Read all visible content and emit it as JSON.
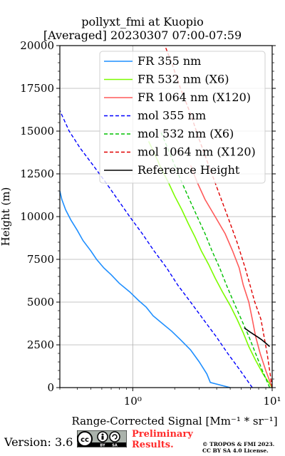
{
  "title_line1": "pollyxt_fmi at Kuopio",
  "title_line2": "[Averaged] 20230307 07:00-07:59",
  "version_label": "Version: 3.6",
  "prelim_line1": "Preliminary",
  "prelim_line2": "Results.",
  "copyright_line1": "© TROPOS & FMI 2023.",
  "copyright_line2": "CC BY SA 4.0 License.",
  "license_badge_icon": "cc-by-sa-icon",
  "chart_data": {
    "type": "line",
    "ylabel": "Height (m)",
    "xlabel": "Range-Corrected Signal [Mm⁻¹ * sr⁻¹]",
    "x_scale": "log",
    "xlim": [
      0.3,
      10
    ],
    "ylim": [
      0,
      20000
    ],
    "xticks": [
      {
        "value": 1,
        "label": "10⁰"
      },
      {
        "value": 10,
        "label": "10¹"
      }
    ],
    "yticks": [
      0,
      2500,
      5000,
      7500,
      10000,
      12500,
      15000,
      17500,
      20000
    ],
    "ytick_labels": [
      "0",
      "2500",
      "5000",
      "7500",
      "10000",
      "12500",
      "15000",
      "17500",
      "20000"
    ],
    "grid": true,
    "legend_position": "top-right",
    "series": [
      {
        "name": "FR 355 nm",
        "color": "#1f8fff",
        "style": "solid",
        "points": [
          [
            5.0,
            0
          ],
          [
            3.6,
            300
          ],
          [
            3.4,
            800
          ],
          [
            3.0,
            1500
          ],
          [
            2.6,
            2200
          ],
          [
            2.2,
            2800
          ],
          [
            1.9,
            3300
          ],
          [
            1.6,
            3800
          ],
          [
            1.4,
            4200
          ],
          [
            1.25,
            4700
          ],
          [
            1.1,
            5100
          ],
          [
            0.95,
            5600
          ],
          [
            0.8,
            6100
          ],
          [
            0.7,
            6600
          ],
          [
            0.62,
            7000
          ],
          [
            0.55,
            7500
          ],
          [
            0.5,
            8000
          ],
          [
            0.44,
            8600
          ],
          [
            0.4,
            9200
          ],
          [
            0.36,
            9800
          ],
          [
            0.33,
            10400
          ],
          [
            0.31,
            11000
          ],
          [
            0.3,
            11500
          ]
        ]
      },
      {
        "name": "FR 532 nm (X6)",
        "color": "#7cfc00",
        "style": "solid",
        "points": [
          [
            10.0,
            0
          ],
          [
            8.6,
            800
          ],
          [
            7.6,
            1600
          ],
          [
            6.8,
            2400
          ],
          [
            6.2,
            3200
          ],
          [
            5.6,
            4000
          ],
          [
            5.0,
            4800
          ],
          [
            4.4,
            5600
          ],
          [
            3.9,
            6400
          ],
          [
            3.5,
            7200
          ],
          [
            3.1,
            8000
          ],
          [
            2.8,
            8800
          ],
          [
            2.5,
            9600
          ],
          [
            2.25,
            10400
          ],
          [
            2.0,
            11200
          ],
          [
            1.8,
            12000
          ],
          [
            1.6,
            12800
          ],
          [
            1.45,
            13600
          ],
          [
            1.3,
            14400
          ]
        ]
      },
      {
        "name": "FR 1064 nm (X120)",
        "color": "#ff5a5a",
        "style": "solid",
        "points": [
          [
            10.0,
            0
          ],
          [
            9.0,
            1000
          ],
          [
            8.2,
            2000
          ],
          [
            7.6,
            3000
          ],
          [
            7.2,
            4000
          ],
          [
            6.8,
            5000
          ],
          [
            6.2,
            6000
          ],
          [
            5.8,
            7000
          ],
          [
            5.2,
            8000
          ],
          [
            4.6,
            9000
          ],
          [
            3.9,
            10000
          ],
          [
            3.3,
            11000
          ],
          [
            2.9,
            12000
          ],
          [
            2.6,
            13000
          ]
        ]
      },
      {
        "name": "mol 355 nm",
        "color": "#0000ff",
        "style": "dashed",
        "points": [
          [
            7.2,
            0
          ],
          [
            5.9,
            1000
          ],
          [
            4.8,
            2000
          ],
          [
            3.95,
            3000
          ],
          [
            3.2,
            4000
          ],
          [
            2.6,
            5000
          ],
          [
            2.1,
            6000
          ],
          [
            1.75,
            7000
          ],
          [
            1.42,
            8000
          ],
          [
            1.17,
            9000
          ],
          [
            0.95,
            10000
          ],
          [
            0.78,
            11000
          ],
          [
            0.64,
            12000
          ],
          [
            0.52,
            13000
          ],
          [
            0.42,
            14000
          ],
          [
            0.35,
            15000
          ],
          [
            0.3,
            16200
          ]
        ]
      },
      {
        "name": "mol 532 nm (X6)",
        "color": "#00c000",
        "style": "dashed",
        "points": [
          [
            9.6,
            0
          ],
          [
            8.5,
            1000
          ],
          [
            7.6,
            2000
          ],
          [
            6.8,
            3000
          ],
          [
            6.0,
            4000
          ],
          [
            5.3,
            5000
          ],
          [
            4.7,
            6000
          ],
          [
            4.2,
            7000
          ],
          [
            3.7,
            8000
          ],
          [
            3.3,
            9000
          ],
          [
            2.9,
            10000
          ],
          [
            2.55,
            11000
          ],
          [
            2.25,
            12000
          ],
          [
            2.0,
            13000
          ],
          [
            1.78,
            14000
          ],
          [
            1.58,
            15000
          ]
        ]
      },
      {
        "name": "mol 1064 nm (X120)",
        "color": "#e00000",
        "style": "dashed",
        "points": [
          [
            10.0,
            0
          ],
          [
            9.2,
            2000
          ],
          [
            8.3,
            4000
          ],
          [
            7.5,
            5000
          ],
          [
            6.4,
            7000
          ],
          [
            5.6,
            8500
          ],
          [
            4.8,
            10000
          ],
          [
            4.1,
            11500
          ],
          [
            3.5,
            13000
          ],
          [
            3.0,
            14500
          ],
          [
            2.6,
            16000
          ],
          [
            2.2,
            17500
          ],
          [
            1.9,
            19000
          ],
          [
            1.7,
            20000
          ]
        ]
      },
      {
        "name": "Reference Height",
        "color": "#000000",
        "style": "solid",
        "points": [
          [
            6.3,
            3500
          ],
          [
            6.8,
            3300
          ],
          [
            7.4,
            3100
          ],
          [
            7.9,
            2950
          ],
          [
            8.4,
            2800
          ],
          [
            9.0,
            2600
          ],
          [
            9.6,
            2400
          ]
        ]
      }
    ]
  }
}
